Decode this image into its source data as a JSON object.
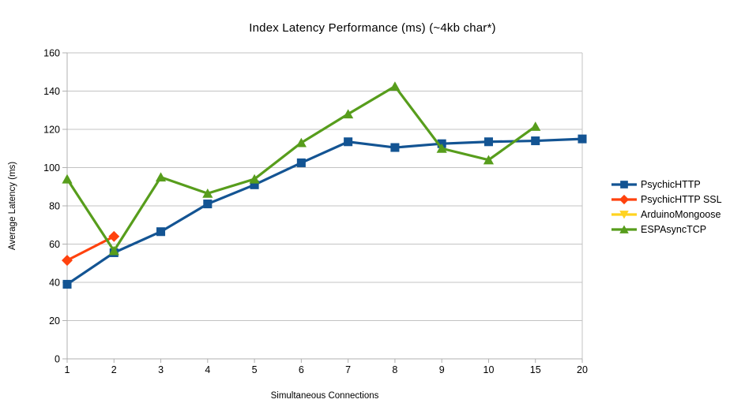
{
  "chart_data": {
    "type": "line",
    "title": "Index Latency Performance (ms) (~4kb char*)",
    "xlabel": "Simultaneous Connections",
    "ylabel": "Average Latency (ms)",
    "x_categories": [
      "1",
      "2",
      "3",
      "4",
      "5",
      "6",
      "7",
      "8",
      "9",
      "10",
      "15",
      "20"
    ],
    "y_ticks": [
      0,
      20,
      40,
      60,
      80,
      100,
      120,
      140,
      160
    ],
    "ylim": [
      0,
      160
    ],
    "grid": "horizontal",
    "legend_position": "right",
    "colors": {
      "grid": "#c3c3c3",
      "axis": "#b0b0b0",
      "text": "#000000",
      "background": "#ffffff"
    },
    "series": [
      {
        "name": "PsychicHTTP",
        "color": "#135493",
        "marker": "square",
        "values": [
          39,
          55.5,
          66.5,
          81,
          91,
          102.5,
          113.5,
          110.5,
          112.5,
          113.5,
          114,
          115
        ]
      },
      {
        "name": "PsychicHTTP SSL",
        "color": "#ff420e",
        "marker": "diamond",
        "values": [
          51.5,
          64,
          null,
          null,
          null,
          null,
          null,
          null,
          null,
          null,
          null,
          null
        ]
      },
      {
        "name": "ArduinoMongoose",
        "color": "#ffd320",
        "marker": "triangle-down",
        "values": [
          null,
          null,
          null,
          null,
          null,
          null,
          null,
          null,
          null,
          null,
          null,
          null
        ]
      },
      {
        "name": "ESPAsyncTCP",
        "color": "#579d1c",
        "marker": "triangle-up",
        "values": [
          94,
          56.5,
          95,
          86.5,
          94,
          113,
          128,
          142.5,
          110,
          104,
          121.5,
          null
        ]
      }
    ]
  }
}
